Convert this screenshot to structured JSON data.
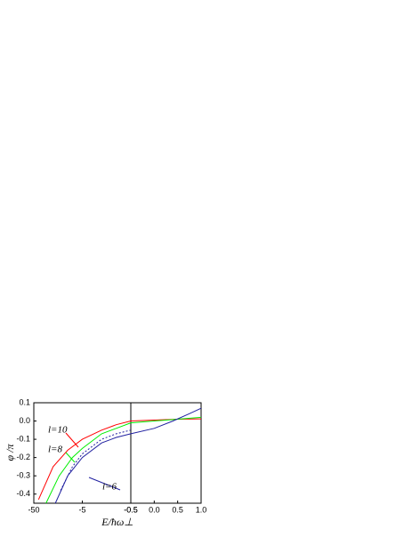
{
  "chart_data": [
    {
      "type": "line",
      "xscale": "log",
      "xlim": [
        -50,
        -0.5
      ],
      "xticks": [
        -50,
        -5,
        -0.5
      ],
      "ylim": [
        -0.45,
        0.1
      ],
      "yticks": [
        0.1,
        {
          "value": 0,
          "label": "0.0"
        },
        -0.1,
        -0.2,
        -0.3,
        -0.4
      ],
      "ylabel": "φ /π",
      "xlabel": "E/ħω⊥",
      "series": [
        {
          "name": "l=10",
          "color": "#ff0000",
          "dash": false,
          "x": [
            -40,
            -20,
            -10,
            -5,
            -2,
            -1,
            -0.5
          ],
          "values": [
            -0.43,
            -0.25,
            -0.16,
            -0.1,
            -0.05,
            -0.02,
            0.0
          ]
        },
        {
          "name": "l=8",
          "color": "#00ee00",
          "dash": false,
          "x": [
            -28,
            -15,
            -8,
            -5,
            -2,
            -1,
            -0.5
          ],
          "values": [
            -0.45,
            -0.3,
            -0.2,
            -0.15,
            -0.07,
            -0.04,
            -0.01
          ]
        },
        {
          "name": "l=6",
          "color": "#2020a0",
          "dash": false,
          "x": [
            -18,
            -10,
            -5,
            -2,
            -1,
            -0.5
          ],
          "values": [
            -0.45,
            -0.3,
            -0.2,
            -0.12,
            -0.09,
            -0.07
          ]
        },
        {
          "color": "#2020a0",
          "dash": true,
          "x": [
            -14,
            -8,
            -5,
            -2,
            -1,
            -0.5
          ],
          "values": [
            -0.38,
            -0.25,
            -0.18,
            -0.1,
            -0.07,
            -0.05
          ]
        }
      ]
    },
    {
      "type": "line",
      "xlim": [
        -0.5,
        1.0
      ],
      "xticks": [
        -0.5,
        {
          "value": 0,
          "label": "0.0"
        },
        0.5,
        {
          "value": 1,
          "label": "1.0"
        }
      ],
      "ylim": [
        -0.45,
        0.1
      ],
      "series": [
        {
          "color": "#ff0000",
          "dash": false,
          "x": [
            -0.5,
            0,
            0.5,
            1.0
          ],
          "values": [
            0.0,
            0.005,
            0.01,
            0.012
          ]
        },
        {
          "color": "#00ee00",
          "dash": false,
          "x": [
            -0.5,
            0,
            0.5,
            1.0
          ],
          "values": [
            -0.01,
            0.0,
            0.01,
            0.02
          ]
        },
        {
          "color": "#2020a0",
          "dash": false,
          "x": [
            -0.5,
            0,
            0.4,
            0.75,
            1.0
          ],
          "values": [
            -0.07,
            -0.04,
            0.0,
            0.04,
            0.07
          ]
        }
      ]
    }
  ]
}
